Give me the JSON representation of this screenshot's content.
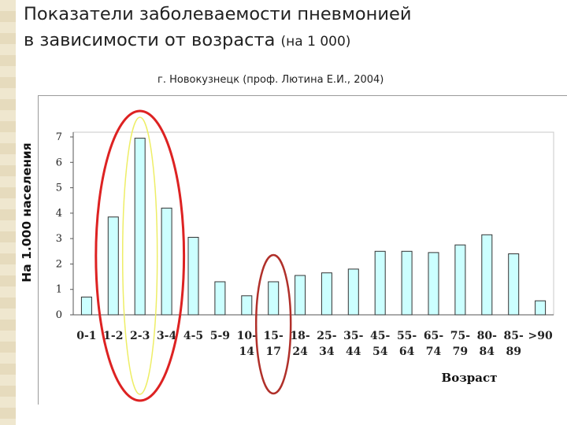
{
  "header": {
    "title_line1": "Показатели заболеваемости пневмонией",
    "title_line2": "в зависимости от  возраста",
    "title_suffix": "(на 1 000)",
    "subtitle": "г. Новокузнецк (проф. Лютина Е.И.,  2004)"
  },
  "chart_data": {
    "type": "bar",
    "categories": [
      "0-1",
      "1-2",
      "2-3",
      "3-4",
      "4-5",
      "5-9",
      "10-14",
      "15-17",
      "18-24",
      "25-34",
      "35-44",
      "45-54",
      "55-64",
      "65-74",
      "75-79",
      "80-84",
      "85-89",
      ">90"
    ],
    "x_tick_labels": [
      [
        "0-1"
      ],
      [
        "1-2"
      ],
      [
        "2-3"
      ],
      [
        "3-4"
      ],
      [
        "4-5"
      ],
      [
        "5-9"
      ],
      [
        "10-",
        "14"
      ],
      [
        "15-",
        "17"
      ],
      [
        "18-",
        "24"
      ],
      [
        "25-",
        "34"
      ],
      [
        "35-",
        "44"
      ],
      [
        "45-",
        "54"
      ],
      [
        "55-",
        "64"
      ],
      [
        "65-",
        "74"
      ],
      [
        "75-",
        "79"
      ],
      [
        "80-",
        "84"
      ],
      [
        "85-",
        "89"
      ],
      [
        ">90"
      ]
    ],
    "values": [
      0.7,
      3.85,
      6.95,
      4.2,
      3.05,
      1.3,
      0.75,
      1.3,
      1.55,
      1.65,
      1.8,
      2.5,
      2.5,
      2.45,
      2.75,
      3.15,
      2.4,
      0.55
    ],
    "ylabel": "На 1.000 населения",
    "xlabel": "Возраст",
    "ylim": [
      0,
      7
    ],
    "y_ticks": [
      0,
      1,
      2,
      3,
      4,
      5,
      6,
      7
    ],
    "grid": false,
    "colors": {
      "bar_fill": "#ccffff",
      "bar_stroke": "#333333",
      "highlight_red": "#dd2222",
      "highlight_red_dark": "#b0302a",
      "highlight_yellow": "#eeee66"
    },
    "annotations": [
      {
        "type": "ellipse",
        "around_categories": [
          "1-2",
          "2-3",
          "3-4"
        ],
        "color": "#dd2222"
      },
      {
        "type": "ellipse",
        "around_categories": [
          "2-3"
        ],
        "color": "#eeee66"
      },
      {
        "type": "ellipse",
        "around_categories": [
          "15-17"
        ],
        "color": "#b0302a"
      }
    ]
  }
}
